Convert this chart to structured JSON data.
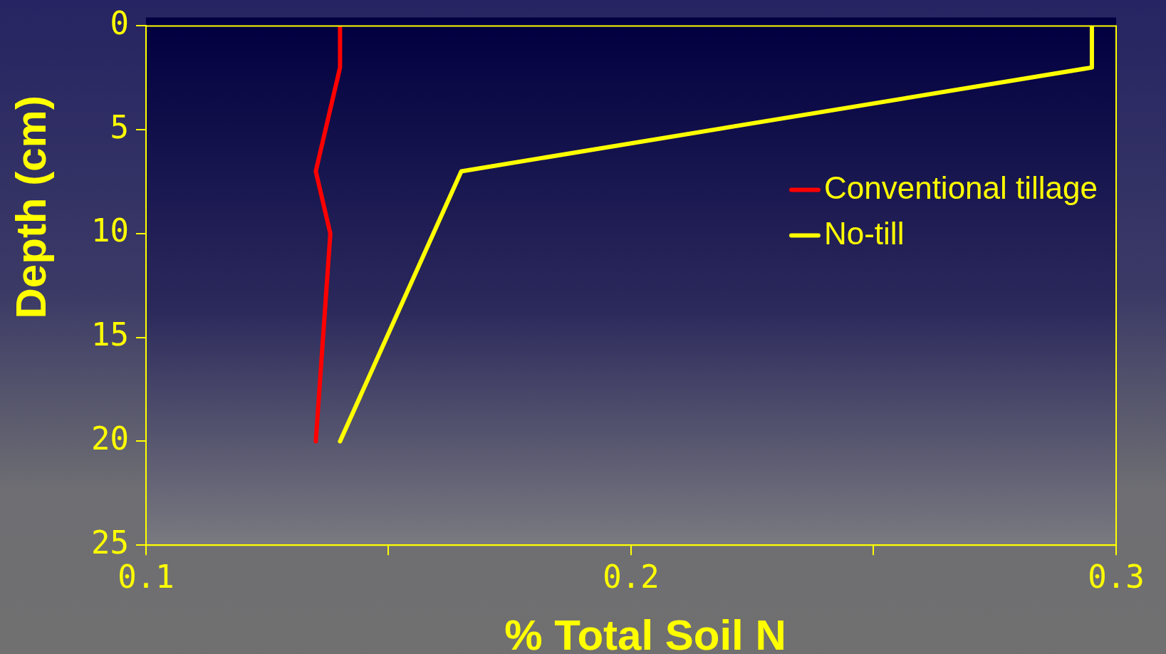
{
  "chart_data": {
    "type": "line",
    "xlabel": "% Total Soil N",
    "ylabel": "Depth (cm)",
    "xlim": [
      0.1,
      0.3
    ],
    "xticks": [
      0.1,
      {
        "value": 0.15,
        "label": null
      },
      0.2,
      {
        "value": 0.25,
        "label": null
      },
      0.3
    ],
    "ylim": [
      25,
      0
    ],
    "yticks": [
      0,
      5,
      10,
      15,
      20,
      25
    ],
    "grid": false,
    "legend": "right",
    "marker": "none",
    "line_style": "solid",
    "series": [
      {
        "name": "Conventional tillage",
        "color": "#ff0000",
        "x": [
          0.14,
          0.14,
          0.135,
          0.138,
          0.135
        ],
        "values": [
          0,
          2,
          7,
          10,
          20
        ]
      },
      {
        "name": "No-till",
        "color": "#ffff00",
        "x": [
          0.295,
          0.295,
          0.165,
          0.14
        ],
        "values": [
          0,
          2,
          7,
          20
        ]
      }
    ]
  }
}
